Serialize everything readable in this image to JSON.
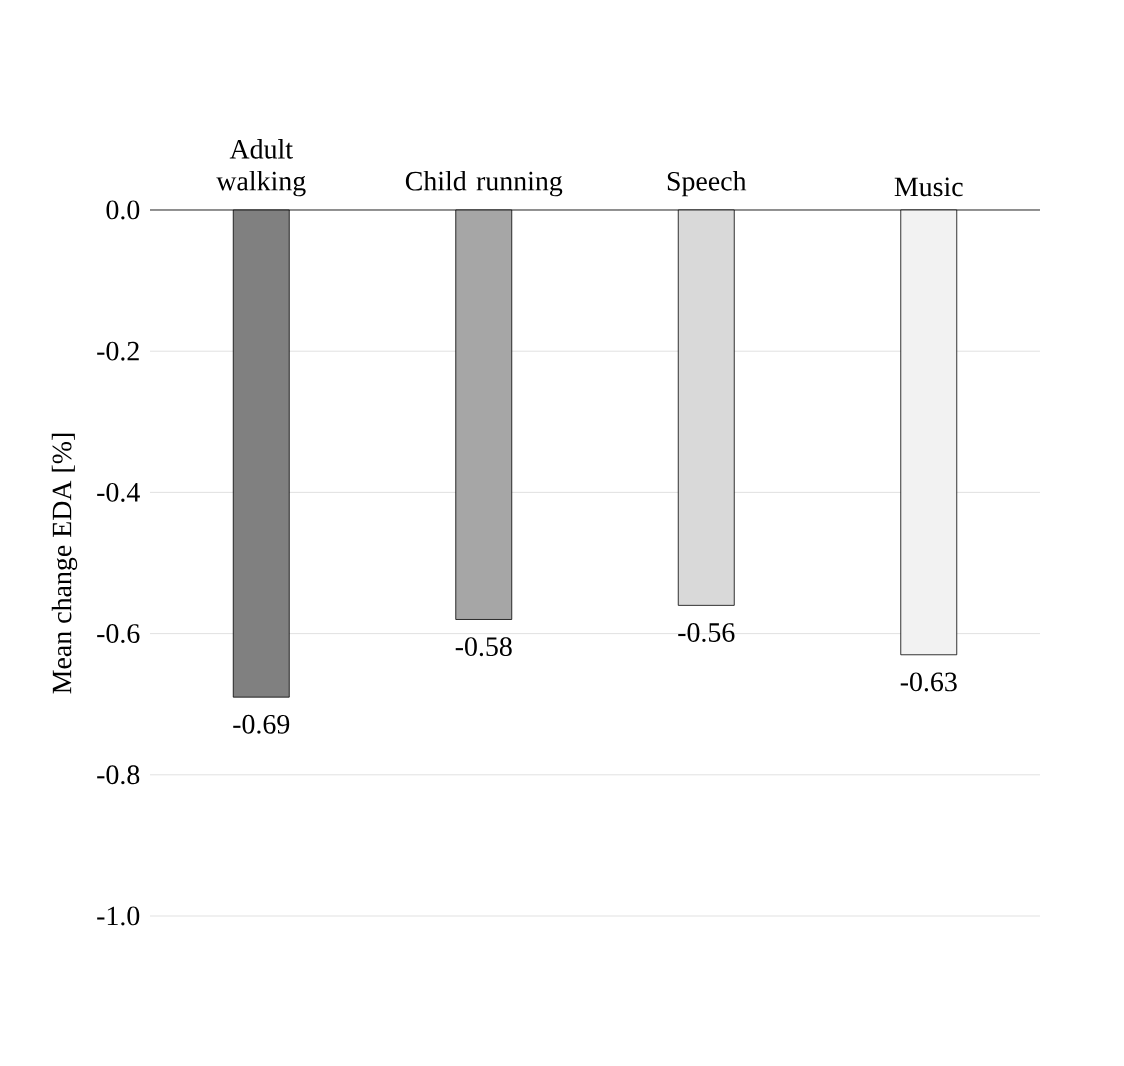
{
  "chart_data": {
    "type": "bar",
    "ylabel": "Mean change EDA [%]",
    "categories": [
      "Adult walking",
      "Child running",
      "Speech",
      "Music"
    ],
    "values": [
      -0.69,
      -0.58,
      -0.56,
      -0.63
    ],
    "colors": [
      "#808080",
      "#a6a6a6",
      "#d9d9d9",
      "#f2f2f2"
    ],
    "ylim": [
      -1,
      0
    ],
    "yticks": [
      {
        "value": -1,
        "label": "-1.0"
      },
      -0.8,
      -0.6,
      -0.4,
      -0.2,
      {
        "value": 0,
        "label": "0.0"
      }
    ],
    "grid": "y",
    "data_labels": true
  }
}
